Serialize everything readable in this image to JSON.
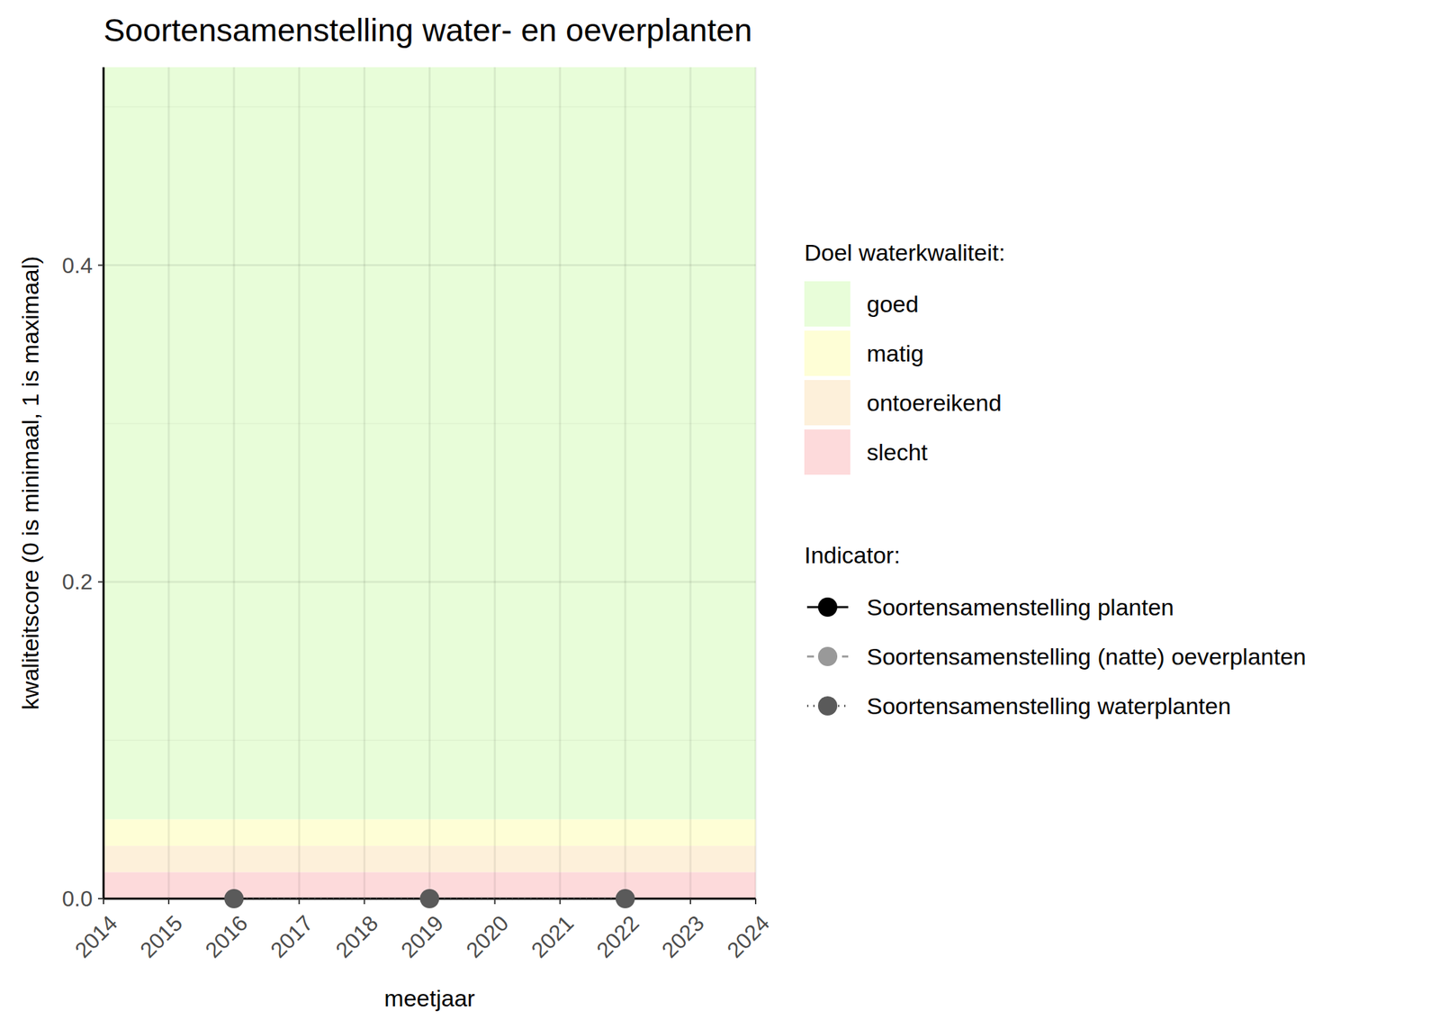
{
  "chart_data": {
    "type": "line",
    "title": "Soortensamenstelling water- en oeverplanten",
    "x_label": "meetjaar",
    "y_label": "kwaliteitscore (0 is minimaal, 1 is maximaal)",
    "x": [
      2016,
      2019,
      2022
    ],
    "series": [
      {
        "name": "Soortensamenstelling planten",
        "color": "#000000",
        "line_style": "solid",
        "marker": "circle",
        "values": [
          null,
          null,
          null
        ]
      },
      {
        "name": "Soortensamenstelling (natte) oeverplanten",
        "color": "#999999",
        "line_style": "dashed",
        "marker": "circle",
        "values": [
          null,
          null,
          null
        ]
      },
      {
        "name": "Soortensamenstelling waterplanten",
        "color": "#5a5a5a",
        "line_style": "dotted",
        "marker": "circle",
        "values": [
          0,
          0,
          0
        ]
      }
    ],
    "xlim": [
      2014,
      2024
    ],
    "xticks": [
      2014,
      2015,
      2016,
      2017,
      2018,
      2019,
      2020,
      2021,
      2022,
      2023,
      2024
    ],
    "ylim": [
      0,
      0.525
    ],
    "yticks": [
      {
        "value": 0,
        "label": "0.0"
      },
      {
        "value": 0.2,
        "label": "0.2"
      },
      {
        "value": 0.4,
        "label": "0.4"
      }
    ],
    "grid": true,
    "legend": "right",
    "legend_title": "Indicator:",
    "bands_title": "Doel waterkwaliteit:",
    "bands": [
      {
        "name": "goed",
        "color": "#e8fdd9",
        "from": 0.05,
        "to": 0.525
      },
      {
        "name": "matig",
        "color": "#fefed6",
        "from": 0.0333,
        "to": 0.05
      },
      {
        "name": "ontoereikend",
        "color": "#fdf0da",
        "from": 0.0167,
        "to": 0.0333
      },
      {
        "name": "slecht",
        "color": "#fddadb",
        "from": 0,
        "to": 0.0167
      }
    ]
  }
}
